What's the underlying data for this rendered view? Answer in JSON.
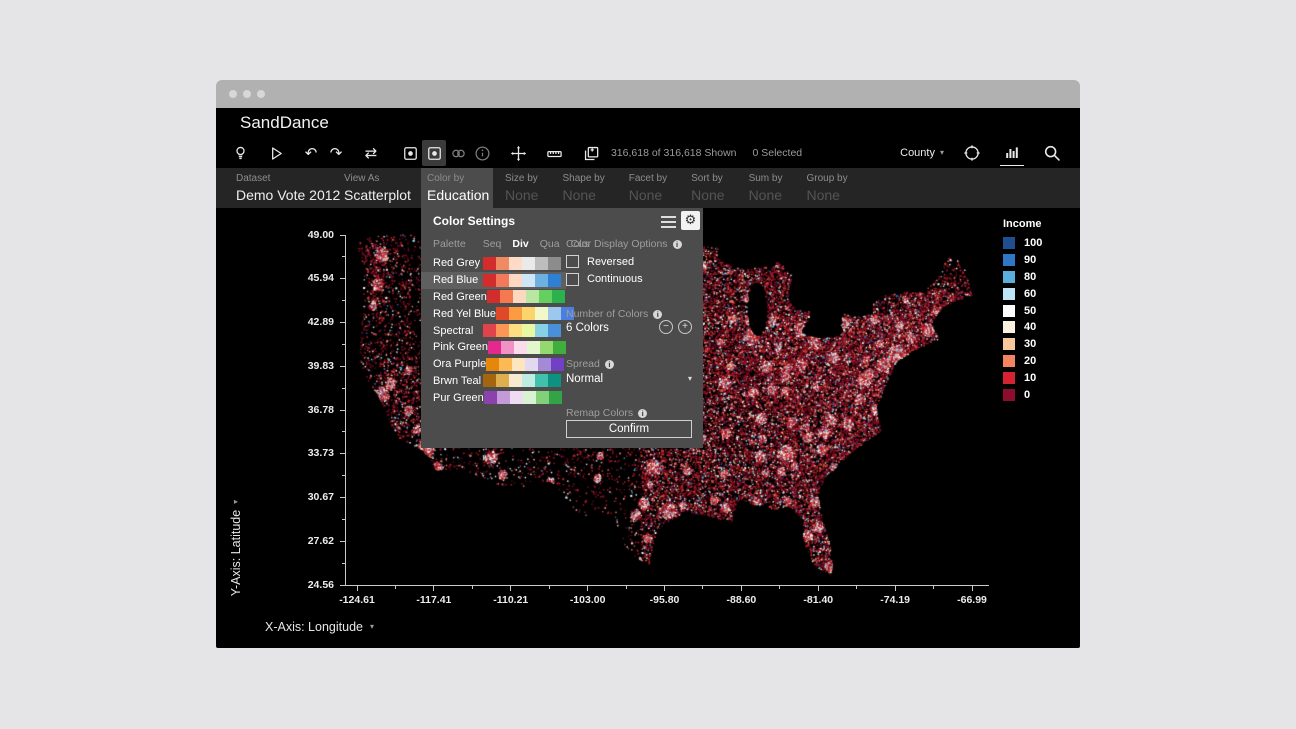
{
  "window": {
    "controls": [
      "dot",
      "dot",
      "dot"
    ]
  },
  "app": {
    "title": "SandDance"
  },
  "toolbar": {
    "icons": [
      "lightbulb-icon",
      "run-icon",
      "undo-icon",
      "redo-icon",
      "replay-icon",
      "chart-frame-icon",
      "chart-frame-filled-icon",
      "link-icon",
      "info-icon",
      "move-icon",
      "ruler-icon",
      "snapshot-icon",
      "target-icon",
      "column-chart-icon",
      "search-icon"
    ],
    "shown_text": "316,618 of 316,618 Shown",
    "selected_text": "0 Selected",
    "county_label": "County"
  },
  "tabs": [
    {
      "label": "Dataset",
      "value": "Demo Vote 2012",
      "state": "set"
    },
    {
      "label": "View As",
      "value": "Scatterplot",
      "state": "set"
    },
    {
      "label": "Color by",
      "value": "Education",
      "state": "active"
    },
    {
      "label": "Size by",
      "value": "None",
      "state": "none"
    },
    {
      "label": "Shape by",
      "value": "None",
      "state": "none"
    },
    {
      "label": "Facet by",
      "value": "None",
      "state": "none"
    },
    {
      "label": "Sort by",
      "value": "None",
      "state": "none"
    },
    {
      "label": "Sum by",
      "value": "None",
      "state": "none"
    },
    {
      "label": "Group by",
      "value": "None",
      "state": "none"
    }
  ],
  "color_settings": {
    "title": "Color Settings",
    "palette_label": "Palette",
    "palette_tabs": [
      "Seq",
      "Div",
      "Qua",
      "Cus"
    ],
    "active_palette_tab": "Div",
    "selected_palette": "Red Blue",
    "palettes": [
      {
        "name": "Red Grey",
        "colors": [
          "#d22c2c",
          "#ef8a62",
          "#fddbc7",
          "#eaeaea",
          "#bdbdbd",
          "#8c8c8c"
        ]
      },
      {
        "name": "Red Blue",
        "colors": [
          "#d22c2c",
          "#f4795b",
          "#fcd8c2",
          "#cfe7f5",
          "#6db1e0",
          "#2f7fd4"
        ]
      },
      {
        "name": "Red Green",
        "colors": [
          "#d22c2c",
          "#f4794f",
          "#fbd9c0",
          "#b9e7a2",
          "#66d05e",
          "#2bb24c"
        ]
      },
      {
        "name": "Red Yel Blue",
        "colors": [
          "#df4828",
          "#fb9b42",
          "#fdd36c",
          "#f2f8c9",
          "#9cc8ee",
          "#4a7fe0"
        ]
      },
      {
        "name": "Spectral",
        "colors": [
          "#e0434c",
          "#fb9656",
          "#fede83",
          "#e9f7a2",
          "#86d1e4",
          "#4a90d9"
        ]
      },
      {
        "name": "Pink Green",
        "colors": [
          "#e5288e",
          "#f291c4",
          "#fbdced",
          "#e3f6cd",
          "#93d96e",
          "#3fae3c"
        ]
      },
      {
        "name": "Ora Purple",
        "colors": [
          "#e5870b",
          "#fdb954",
          "#fde5bd",
          "#e2d9f0",
          "#a489d4",
          "#7140c4"
        ]
      },
      {
        "name": "Brwn Teal",
        "colors": [
          "#a3650e",
          "#dfaf4e",
          "#f7ead0",
          "#bfece0",
          "#41c0ad",
          "#0d9180"
        ]
      },
      {
        "name": "Pur Green",
        "colors": [
          "#8b42ad",
          "#c49bd8",
          "#eedcf2",
          "#d9f3d2",
          "#82d178",
          "#33a348"
        ]
      }
    ],
    "display_options_label": "Color Display Options",
    "checkboxes": [
      {
        "label": "Reversed",
        "checked": false
      },
      {
        "label": "Continuous",
        "checked": false
      }
    ],
    "number_of_colors_label": "Number of Colors",
    "number_of_colors_value": "6 Colors",
    "spread_label": "Spread",
    "spread_value": "Normal",
    "remap_label": "Remap Colors",
    "confirm_label": "Confirm"
  },
  "legend": {
    "title": "Income",
    "items": [
      {
        "label": "100",
        "color": "#1e4f8f"
      },
      {
        "label": "90",
        "color": "#2e77c4"
      },
      {
        "label": "80",
        "color": "#5aaede"
      },
      {
        "label": "60",
        "color": "#bfe4f5"
      },
      {
        "label": "50",
        "color": "#ffffff"
      },
      {
        "label": "40",
        "color": "#fbf2dd"
      },
      {
        "label": "30",
        "color": "#f9c79c"
      },
      {
        "label": "20",
        "color": "#f4845f"
      },
      {
        "label": "10",
        "color": "#d52331"
      },
      {
        "label": "0",
        "color": "#8c0d2c"
      }
    ]
  },
  "plot": {
    "y_axis_label": "Y-Axis: Latitude",
    "x_axis_label": "X-Axis: Longitude",
    "y_ticks": [
      "49.00",
      "45.94",
      "42.89",
      "39.83",
      "36.78",
      "33.73",
      "30.67",
      "27.62",
      "24.56"
    ],
    "x_ticks": [
      "-124.61",
      "-117.41",
      "-110.21",
      "-103.00",
      "-95.80",
      "-88.60",
      "-81.40",
      "-74.19",
      "-66.99"
    ]
  }
}
